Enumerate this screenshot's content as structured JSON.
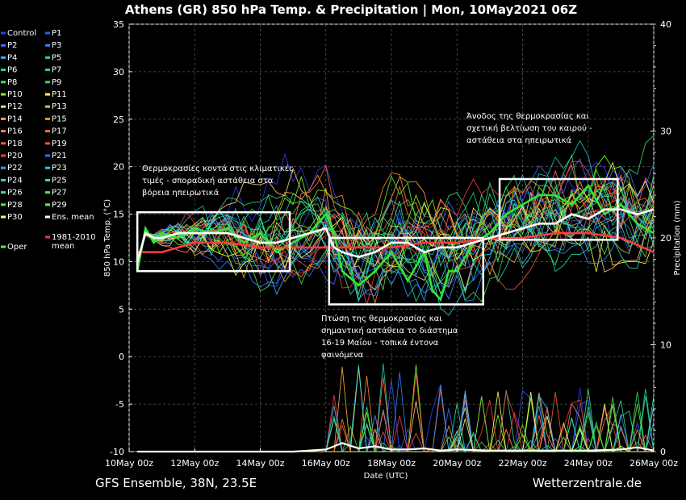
{
  "chart_data": {
    "type": "line",
    "title": "Athens  (GR)  850 hPa Temp. & Precipitation | Mon, 10May2021 06Z",
    "xlabel": "Date (UTC)",
    "ylabel": "850 hPa Temp. (°C)",
    "y2label": "Precipitation (mm)",
    "x_ticks": [
      "10May 00z",
      "12May 00z",
      "14May 00z",
      "16May 00z",
      "18May 00z",
      "20May 00z",
      "22May 00z",
      "24May 00z",
      "26May 00z"
    ],
    "xlim_days": [
      10,
      26
    ],
    "ylim": [
      -10,
      35
    ],
    "y_ticks": [
      "35",
      "30",
      "25",
      "20",
      "15",
      "10",
      "5",
      "0",
      "-5",
      "-10"
    ],
    "y2lim": [
      0,
      40
    ],
    "y2_ticks": [
      "40",
      "30",
      "20",
      "10",
      "0"
    ],
    "grid": true,
    "legend_placement": "left-outside",
    "legend": [
      {
        "name": "Control",
        "color": "#2d3cff"
      },
      {
        "name": "P1",
        "color": "#3a52ff"
      },
      {
        "name": "P2",
        "color": "#3c6cff"
      },
      {
        "name": "P3",
        "color": "#2e86ff"
      },
      {
        "name": "P4",
        "color": "#35a8ff"
      },
      {
        "name": "P5",
        "color": "#1ec8d0"
      },
      {
        "name": "P6",
        "color": "#22d2a8"
      },
      {
        "name": "P7",
        "color": "#2bd884"
      },
      {
        "name": "P8",
        "color": "#36e06a"
      },
      {
        "name": "P9",
        "color": "#38d84a"
      },
      {
        "name": "P10",
        "color": "#7cff1a"
      },
      {
        "name": "P11",
        "color": "#ffff3a"
      },
      {
        "name": "P12",
        "color": "#ffd27a"
      },
      {
        "name": "P13",
        "color": "#ffb040"
      },
      {
        "name": "P14",
        "color": "#ffa030"
      },
      {
        "name": "P15",
        "color": "#ff9020"
      },
      {
        "name": "P16",
        "color": "#ff8060"
      },
      {
        "name": "P17",
        "color": "#ff6a40"
      },
      {
        "name": "P18",
        "color": "#ff5a3a"
      },
      {
        "name": "P19",
        "color": "#ff4a4a"
      },
      {
        "name": "P20",
        "color": "#ff3a3a"
      },
      {
        "name": "P21",
        "color": "#3a6aff"
      },
      {
        "name": "P22",
        "color": "#3a9aff"
      },
      {
        "name": "P23",
        "color": "#3ab8ff"
      },
      {
        "name": "P24",
        "color": "#2ad8e0"
      },
      {
        "name": "P25",
        "color": "#2ae0b0"
      },
      {
        "name": "P26",
        "color": "#30e090"
      },
      {
        "name": "P27",
        "color": "#40e870"
      },
      {
        "name": "P28",
        "color": "#50e850"
      },
      {
        "name": "P29",
        "color": "#60f040"
      },
      {
        "name": "P30",
        "color": "#ffff60"
      },
      {
        "name": "Ens. mean",
        "color": "#ffffff"
      },
      {
        "name": "1981-2010\nmean",
        "color": "#ff3030"
      },
      {
        "name": "Oper",
        "color": "#40ff40"
      }
    ],
    "ens_mean": {
      "x_days": [
        10.25,
        10.5,
        10.75,
        11,
        11.5,
        12,
        12.5,
        13,
        13.5,
        14,
        14.5,
        15,
        15.5,
        16,
        16.25,
        16.5,
        17,
        17.5,
        18,
        18.5,
        19,
        19.5,
        20,
        20.5,
        21,
        21.5,
        22,
        22.5,
        23,
        23.5,
        24,
        24.5,
        25,
        25.5,
        26
      ],
      "values": [
        10,
        13,
        12.5,
        12.5,
        13,
        13,
        13,
        13,
        12.5,
        12,
        12,
        12.5,
        13,
        13.5,
        11.5,
        11,
        10.5,
        11,
        12,
        12,
        11,
        11.5,
        11.5,
        12,
        12.5,
        13,
        13.5,
        14,
        14,
        15,
        14.5,
        15.5,
        15.5,
        15,
        15.5
      ]
    },
    "climatology_mean": {
      "x_days": [
        10.25,
        11,
        12,
        13,
        14,
        15,
        16,
        17,
        18,
        19,
        20,
        21,
        22,
        23,
        24,
        25,
        26
      ],
      "values": [
        11,
        11,
        12,
        12,
        11.5,
        11.5,
        11.5,
        11.5,
        11.5,
        12,
        12,
        12.5,
        12.5,
        13,
        13,
        12.5,
        11
      ]
    },
    "oper": {
      "x_days": [
        10.25,
        10.5,
        10.75,
        11,
        11.5,
        12,
        12.5,
        13,
        13.5,
        14,
        14.5,
        15,
        15.5,
        16,
        16.25,
        16.5,
        17,
        17.5,
        18,
        18.5,
        19,
        19.25,
        19.5,
        19.75,
        20,
        20.5,
        21,
        21.5,
        22,
        22.5,
        23,
        23.5,
        24,
        24.5,
        25,
        25.5,
        26
      ],
      "values": [
        9,
        13.5,
        12,
        13,
        12.5,
        13.5,
        13,
        13.5,
        12,
        13,
        11,
        12,
        13,
        15,
        13,
        9,
        7.5,
        9,
        11,
        8,
        11,
        7,
        6,
        9,
        9,
        12,
        13,
        15,
        16,
        17,
        17,
        16,
        18,
        15,
        16,
        14,
        13
      ]
    },
    "precip_ens_mean": {
      "x_days": [
        10.25,
        15,
        16,
        16.5,
        17,
        17.5,
        18,
        18.5,
        19,
        19.5,
        20,
        21,
        22,
        23,
        24,
        25,
        25.5,
        26
      ],
      "values": [
        0,
        0,
        0.2,
        0.8,
        0.3,
        0.5,
        0.2,
        0.2,
        0.3,
        0.1,
        0.2,
        0.1,
        0.1,
        0.1,
        0.1,
        0.2,
        0.4,
        0.1
      ]
    },
    "annotations": [
      {
        "text": "Θερμοκρασίες κοντά στις κλιματικές\nτιμές - σποραδική αστάθεια στα\nβόρεια ηπειρωτικά"
      },
      {
        "text": "Πτώση της θερμοκρασίας και\nσημαντική αστάθεια το διάστημα\n16-19 Μαΐου - τοπικά έντονα\nφαινόμενα"
      },
      {
        "text": "Άνοδος της θερμοκρασίας και\nσχετική βελτίωση του καιρού -\nαστάθεια στα ηπειρωτικά"
      }
    ],
    "highlight_boxes": [
      {
        "x_days": [
          10.25,
          14.9
        ],
        "y": [
          9,
          15.2
        ]
      },
      {
        "x_days": [
          16.1,
          20.8
        ],
        "y": [
          5.5,
          12.5
        ]
      },
      {
        "x_days": [
          21.3,
          24.9
        ],
        "y": [
          12.3,
          18.7
        ]
      }
    ]
  },
  "footer": {
    "left": "GFS Ensemble, 38N, 23.5E",
    "right": "Wetterzentrale.de"
  }
}
